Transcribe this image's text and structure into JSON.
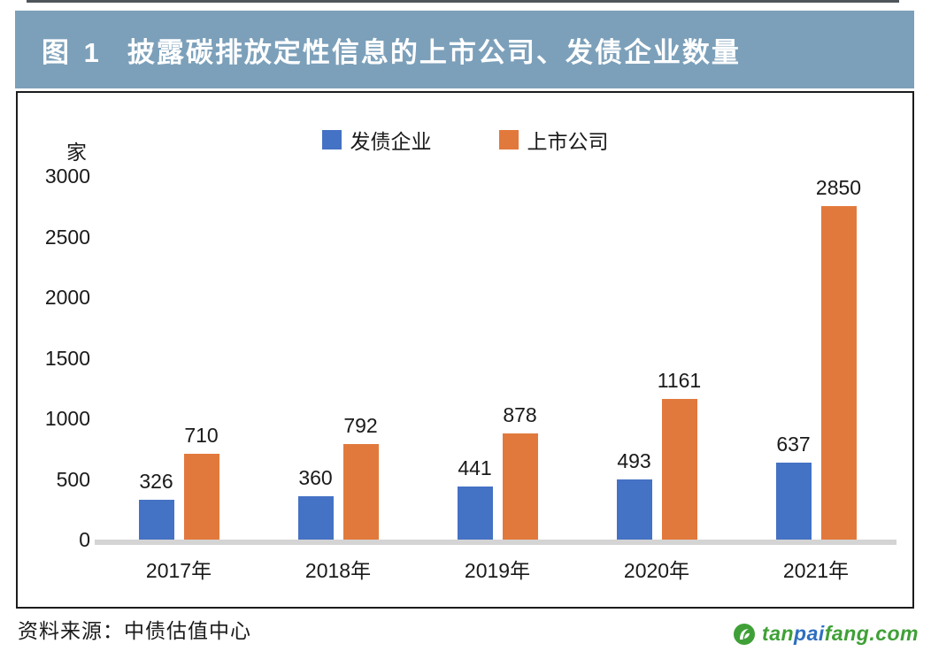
{
  "header": {
    "figure_label": "图 1",
    "title": "披露碳排放定性信息的上市公司、发债企业数量"
  },
  "chart_data": {
    "type": "bar",
    "title": "披露碳排放定性信息的上市公司、发债企业数量",
    "categories": [
      "2017年",
      "2018年",
      "2019年",
      "2020年",
      "2021年"
    ],
    "series": [
      {
        "name": "发债企业",
        "color": "#4472C4",
        "values": [
          326,
          360,
          441,
          493,
          637
        ]
      },
      {
        "name": "上市公司",
        "color": "#E2793C",
        "values": [
          710,
          792,
          878,
          1161,
          2850
        ]
      }
    ],
    "xlabel": "",
    "ylabel": "家",
    "ylim": [
      0,
      3000
    ],
    "ytick_step": 500,
    "grid": false,
    "legend_position": "top"
  },
  "footer": {
    "source": "资料来源：中债估值中心",
    "logo": {
      "part1": "tan",
      "part2": "pai",
      "part3": "fang.com"
    }
  },
  "colors": {
    "header_bg": "#7CA0BA",
    "header_text": "#FFFFFF",
    "bar_blue": "#4472C4",
    "bar_orange": "#E2793C",
    "axis_line": "#D4D4D4",
    "logo_green": "#3FA037",
    "logo_blue": "#2E6FC0"
  }
}
